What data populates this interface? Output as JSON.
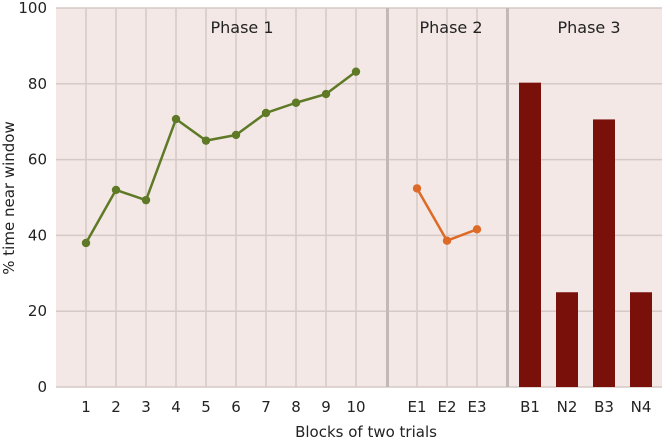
{
  "chart_data": {
    "type": "line",
    "title": "",
    "xlabel": "Blocks of two trials",
    "ylabel": "% time near window",
    "ylim": [
      0,
      100
    ],
    "yticks": [
      0,
      20,
      40,
      60,
      80,
      100
    ],
    "grid": true,
    "colors": {
      "background": "#f3e8e6",
      "grid": "#d6c9c6",
      "phase1_line": "#5f7a26",
      "phase2_line": "#dd6a26",
      "phase3_bar": "#7a100a",
      "separator": "#c2b8b5"
    },
    "phases": [
      {
        "label": "Phase 1",
        "type": "line",
        "categories": [
          "1",
          "2",
          "3",
          "4",
          "5",
          "6",
          "7",
          "8",
          "9",
          "10"
        ],
        "values": [
          38,
          52,
          49.3,
          70.7,
          65,
          66.5,
          72.3,
          75,
          77.3,
          83.2
        ]
      },
      {
        "label": "Phase 2",
        "type": "line",
        "categories": [
          "E1",
          "E2",
          "E3"
        ],
        "values": [
          52.4,
          38.6,
          41.6
        ]
      },
      {
        "label": "Phase 3",
        "type": "bar",
        "categories": [
          "B1",
          "N2",
          "B3",
          "N4"
        ],
        "values": [
          80.3,
          25,
          70.6,
          25
        ]
      }
    ]
  }
}
